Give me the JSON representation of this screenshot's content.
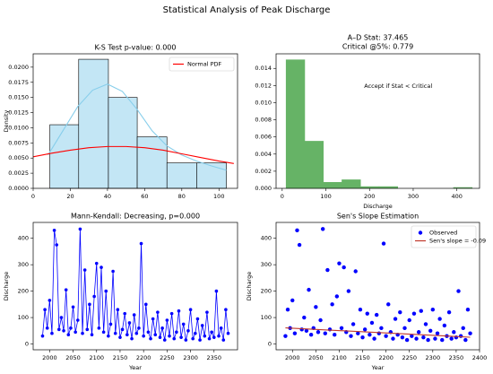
{
  "title": "Statistical Analysis of Peak Discharge",
  "chart_data": [
    {
      "type": "histogram",
      "title": "K-S Test p-value: 0.000",
      "ylabel": "Density",
      "bins": [
        9,
        24.5,
        40.5,
        56,
        72,
        88,
        104
      ],
      "values": [
        0.0105,
        0.0213,
        0.015,
        0.0085,
        0.0042,
        0.0042
      ],
      "color": "#c3e6f5",
      "edgecolor": "#000000",
      "xlim": [
        0,
        110
      ],
      "xticks": [
        0,
        20,
        40,
        60,
        80,
        100
      ],
      "ylim": [
        0,
        0.0222
      ],
      "yticks": [
        {
          "value": 0,
          "label": "0.0000"
        },
        {
          "value": 0.0025,
          "label": "0.0025"
        },
        {
          "value": 0.005,
          "label": "0.0050"
        },
        {
          "value": 0.0075,
          "label": "0.0075"
        },
        {
          "value": 0.01,
          "label": "0.0100"
        },
        {
          "value": 0.0125,
          "label": "0.0125"
        },
        {
          "value": 0.015,
          "label": "0.0150"
        },
        {
          "value": 0.0175,
          "label": "0.0175"
        },
        {
          "value": 0.02,
          "label": "0.0200"
        }
      ],
      "legend": "upper right",
      "series": [
        {
          "color": "#87ceeb",
          "x": [
            8,
            16,
            24,
            32,
            40,
            48,
            56,
            64,
            72,
            80,
            88,
            96,
            104
          ],
          "values": [
            0.0055,
            0.0095,
            0.0135,
            0.0162,
            0.0172,
            0.016,
            0.013,
            0.0095,
            0.007,
            0.0055,
            0.0045,
            0.0037,
            0.003
          ]
        },
        {
          "name": "Normal PDF",
          "color": "#ff0000",
          "x": [
            0,
            10,
            20,
            30,
            40,
            50,
            60,
            70,
            80,
            90,
            100,
            108
          ],
          "values": [
            0.0052,
            0.0058,
            0.0063,
            0.0067,
            0.0069,
            0.0069,
            0.0067,
            0.0063,
            0.0057,
            0.0051,
            0.0045,
            0.0041
          ]
        }
      ]
    },
    {
      "type": "histogram",
      "title": "A–D Stat: 37.465",
      "subtitle": "Critical @5%: 0.779",
      "annotation": "Accept if Stat < Critical",
      "xlabel": "Discharge",
      "bins": [
        9,
        51.6,
        94.2,
        136.8,
        179.4,
        222,
        264.6,
        307.2,
        349.8,
        392.4,
        435
      ],
      "values": [
        0.015,
        0.0055,
        0.0007,
        0.001,
        0.0002,
        0.0002,
        0,
        0,
        0,
        0.0001
      ],
      "color": "#66b366",
      "edgecolor": "#66b366",
      "xlim": [
        -14,
        452
      ],
      "xticks": [
        0,
        100,
        200,
        300,
        400
      ],
      "ylim": [
        0,
        0.0157
      ],
      "yticks": [
        {
          "value": 0,
          "label": "0.000"
        },
        0.002,
        0.004,
        0.006,
        0.008,
        {
          "value": 0.01,
          "label": "0.010"
        },
        0.012,
        0.014
      ]
    },
    {
      "type": "line",
      "title": "Mann-Kendall: Decreasing, p=0.000",
      "xlabel": "Year",
      "ylabel": "Discharge",
      "x": [
        1985,
        1990,
        1995,
        2000,
        2005,
        2010,
        2015,
        2020,
        2025,
        2030,
        2035,
        2040,
        2045,
        2050,
        2055,
        2060,
        2065,
        2070,
        2075,
        2080,
        2085,
        2090,
        2095,
        2100,
        2105,
        2110,
        2115,
        2120,
        2125,
        2130,
        2135,
        2140,
        2145,
        2150,
        2155,
        2160,
        2165,
        2170,
        2175,
        2180,
        2185,
        2190,
        2195,
        2200,
        2205,
        2210,
        2215,
        2220,
        2225,
        2230,
        2235,
        2240,
        2245,
        2250,
        2255,
        2260,
        2265,
        2270,
        2275,
        2280,
        2285,
        2290,
        2295,
        2300,
        2305,
        2310,
        2315,
        2320,
        2325,
        2330,
        2335,
        2340,
        2345,
        2350,
        2355,
        2360,
        2365,
        2370,
        2375,
        2380
      ],
      "series": [
        {
          "color": "#0000ff",
          "values": [
            30,
            130,
            60,
            165,
            40,
            430,
            375,
            55,
            100,
            50,
            205,
            35,
            60,
            140,
            45,
            90,
            435,
            40,
            280,
            55,
            150,
            35,
            180,
            305,
            60,
            290,
            45,
            200,
            30,
            75,
            275,
            40,
            130,
            25,
            55,
            115,
            35,
            80,
            20,
            110,
            40,
            60,
            380,
            30,
            150,
            45,
            20,
            95,
            35,
            120,
            25,
            60,
            15,
            90,
            30,
            115,
            20,
            45,
            125,
            25,
            75,
            15,
            50,
            130,
            20,
            40,
            95,
            15,
            70,
            30,
            120,
            20,
            45,
            25,
            200,
            30,
            60,
            15,
            130,
            40
          ]
        }
      ],
      "xlim": [
        1965,
        2400
      ],
      "xticks": [
        2000,
        2050,
        2100,
        2150,
        2200,
        2250,
        2300,
        2350
      ],
      "ylim": [
        -22,
        460
      ],
      "yticks": [
        0,
        100,
        200,
        300,
        400
      ]
    },
    {
      "type": "scatter",
      "title": "Sen's Slope Estimation",
      "xlabel": "Year",
      "ylabel": "Discharge",
      "legend": "upper right",
      "series": [
        {
          "name": "Observed",
          "color": "#0000ff",
          "x": [
            1985,
            1990,
            1995,
            2000,
            2005,
            2010,
            2015,
            2020,
            2025,
            2030,
            2035,
            2040,
            2045,
            2050,
            2055,
            2060,
            2065,
            2070,
            2075,
            2080,
            2085,
            2090,
            2095,
            2100,
            2105,
            2110,
            2115,
            2120,
            2125,
            2130,
            2135,
            2140,
            2145,
            2150,
            2155,
            2160,
            2165,
            2170,
            2175,
            2180,
            2185,
            2190,
            2195,
            2200,
            2205,
            2210,
            2215,
            2220,
            2225,
            2230,
            2235,
            2240,
            2245,
            2250,
            2255,
            2260,
            2265,
            2270,
            2275,
            2280,
            2285,
            2290,
            2295,
            2300,
            2305,
            2310,
            2315,
            2320,
            2325,
            2330,
            2335,
            2340,
            2345,
            2350,
            2355,
            2360,
            2365,
            2370,
            2375,
            2380
          ],
          "values": [
            30,
            130,
            60,
            165,
            40,
            430,
            375,
            55,
            100,
            50,
            205,
            35,
            60,
            140,
            45,
            90,
            435,
            40,
            280,
            55,
            150,
            35,
            180,
            305,
            60,
            290,
            45,
            200,
            30,
            75,
            275,
            40,
            130,
            25,
            55,
            115,
            35,
            80,
            20,
            110,
            40,
            60,
            380,
            30,
            150,
            45,
            20,
            95,
            35,
            120,
            25,
            60,
            15,
            90,
            30,
            115,
            20,
            45,
            125,
            25,
            75,
            15,
            50,
            130,
            20,
            40,
            95,
            15,
            70,
            30,
            120,
            20,
            45,
            25,
            200,
            30,
            60,
            15,
            130,
            40
          ]
        },
        {
          "name": "Sen's slope = -0.09",
          "type": "line",
          "color": "#c0392b",
          "x": [
            1985,
            2380
          ],
          "values": [
            61,
            25.5
          ]
        }
      ],
      "xlim": [
        1965,
        2400
      ],
      "xticks": [
        2000,
        2050,
        2100,
        2150,
        2200,
        2250,
        2300,
        2350,
        2400
      ],
      "ylim": [
        -22,
        460
      ],
      "yticks": [
        0,
        100,
        200,
        300,
        400
      ]
    }
  ]
}
